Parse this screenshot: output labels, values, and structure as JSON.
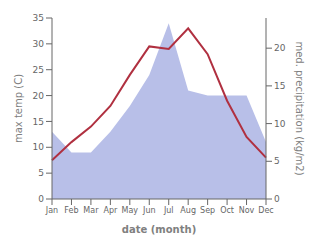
{
  "chart_data": {
    "type": "line",
    "categories": [
      "Jan",
      "Feb",
      "Mar",
      "Apr",
      "May",
      "Jun",
      "Jul",
      "Aug",
      "Sep",
      "Oct",
      "Nov",
      "Dec"
    ],
    "series": [
      {
        "type": "area",
        "color": "#b8bfe8",
        "values": [
          13,
          9,
          9,
          13,
          18,
          24,
          34,
          21,
          20,
          20,
          20,
          11
        ]
      },
      {
        "type": "line",
        "color": "#b03040",
        "values": [
          7.5,
          11,
          14,
          18,
          24,
          29.5,
          29,
          33,
          28,
          19,
          12,
          8
        ]
      }
    ],
    "x_label": "date (month)",
    "y_label": "max temp (C)",
    "y2_label": "med. precipitation (kg/m2)",
    "ylim": [
      0,
      35
    ],
    "yticks": [
      0,
      5,
      10,
      15,
      20,
      25,
      30,
      35
    ],
    "y2lim": [
      0,
      24
    ],
    "y2ticks": [
      0,
      5,
      10,
      15,
      20
    ],
    "grid": false
  }
}
